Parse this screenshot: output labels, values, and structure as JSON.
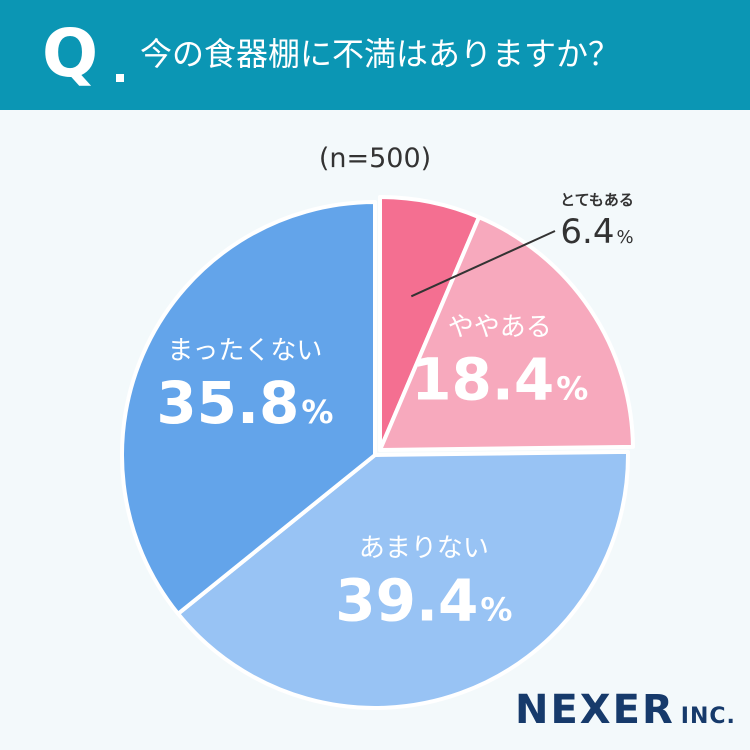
{
  "header": {
    "q_letter": "Q",
    "question": "今の食器棚に不満はありますか？"
  },
  "sample_size": "(n=500)",
  "logo": {
    "main": "NEXER",
    "suffix": "INC."
  },
  "colors": {
    "header_bg": "#0b96b4",
    "page_bg": "#f3f9fb",
    "very": "#f46f91",
    "somewhat": "#f7a9bd",
    "not_much": "#98c3f4",
    "not_at_all": "#63a4ea"
  },
  "chart_data": {
    "type": "pie",
    "title": "今の食器棚に不満はありますか？",
    "start": "12 o'clock, clockwise",
    "slices": [
      {
        "label": "とてもある",
        "value": 6.4,
        "display": "6.4",
        "unit": "%",
        "color": "#f46f91",
        "exploded": true,
        "label_style": "outside"
      },
      {
        "label": "ややある",
        "value": 18.4,
        "display": "18.4",
        "unit": "%",
        "color": "#f7a9bd",
        "exploded": true,
        "label_style": "inside"
      },
      {
        "label": "あまりない",
        "value": 39.4,
        "display": "39.4",
        "unit": "%",
        "color": "#98c3f4",
        "exploded": false,
        "label_style": "inside"
      },
      {
        "label": "まったくない",
        "value": 35.8,
        "display": "35.8",
        "unit": "%",
        "color": "#63a4ea",
        "exploded": false,
        "label_style": "inside"
      }
    ]
  }
}
